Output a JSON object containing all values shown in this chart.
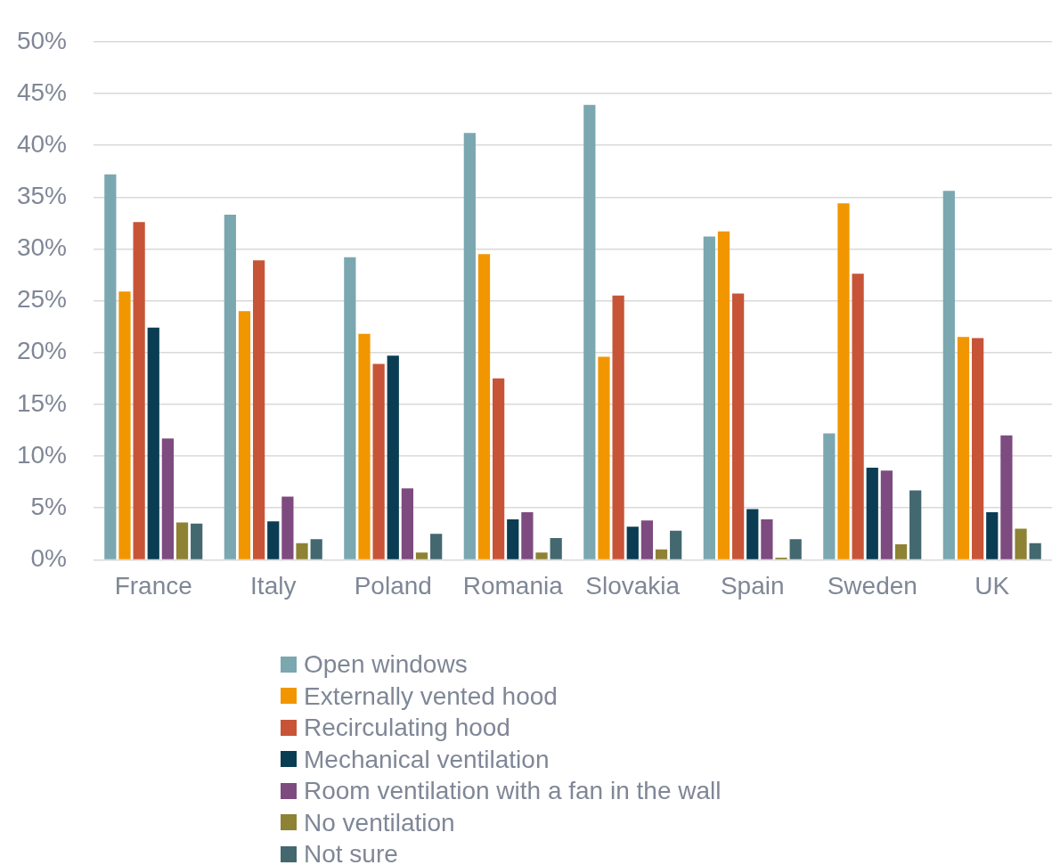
{
  "chart_data": {
    "type": "bar",
    "categories": [
      "France",
      "Italy",
      "Poland",
      "Romania",
      "Slovakia",
      "Spain",
      "Sweden",
      "UK"
    ],
    "series": [
      {
        "name": "Open windows",
        "color": "#7ba7b0",
        "values": [
          37.2,
          33.3,
          29.2,
          41.2,
          43.9,
          31.2,
          12.2,
          35.6
        ]
      },
      {
        "name": "Externally vented hood",
        "color": "#f29600",
        "values": [
          25.9,
          24.0,
          21.8,
          29.5,
          19.6,
          31.7,
          34.4,
          21.5
        ]
      },
      {
        "name": "Recirculating hood",
        "color": "#c85438",
        "values": [
          32.6,
          28.9,
          18.9,
          17.5,
          25.5,
          25.7,
          27.6,
          21.4
        ]
      },
      {
        "name": "Mechanical ventilation",
        "color": "#0a3d53",
        "values": [
          22.4,
          3.7,
          19.7,
          3.9,
          3.2,
          4.9,
          8.9,
          4.6
        ]
      },
      {
        "name": "Room ventilation with a fan in the wall",
        "color": "#7d4b80",
        "values": [
          11.7,
          6.1,
          6.9,
          4.6,
          3.8,
          3.9,
          8.6,
          12.0
        ]
      },
      {
        "name": "No ventilation",
        "color": "#8e8234",
        "values": [
          3.6,
          1.6,
          0.7,
          0.7,
          1.0,
          0.2,
          1.5,
          3.0
        ]
      },
      {
        "name": "Not sure",
        "color": "#43686f",
        "values": [
          3.5,
          2.0,
          2.5,
          2.1,
          2.8,
          2.0,
          6.7,
          1.6
        ]
      }
    ],
    "ylim": [
      0,
      50
    ],
    "yticks": [
      {
        "value": 0,
        "label": "0%"
      },
      {
        "value": 5,
        "label": "5%"
      },
      {
        "value": 10,
        "label": "10%"
      },
      {
        "value": 15,
        "label": "15%"
      },
      {
        "value": 20,
        "label": "20%"
      },
      {
        "value": 25,
        "label": "25%"
      },
      {
        "value": 30,
        "label": "30%"
      },
      {
        "value": 35,
        "label": "35%"
      },
      {
        "value": 40,
        "label": "40%"
      },
      {
        "value": 45,
        "label": "45%"
      },
      {
        "value": 50,
        "label": "50%"
      }
    ],
    "grid": "y",
    "legend": "bottom"
  }
}
